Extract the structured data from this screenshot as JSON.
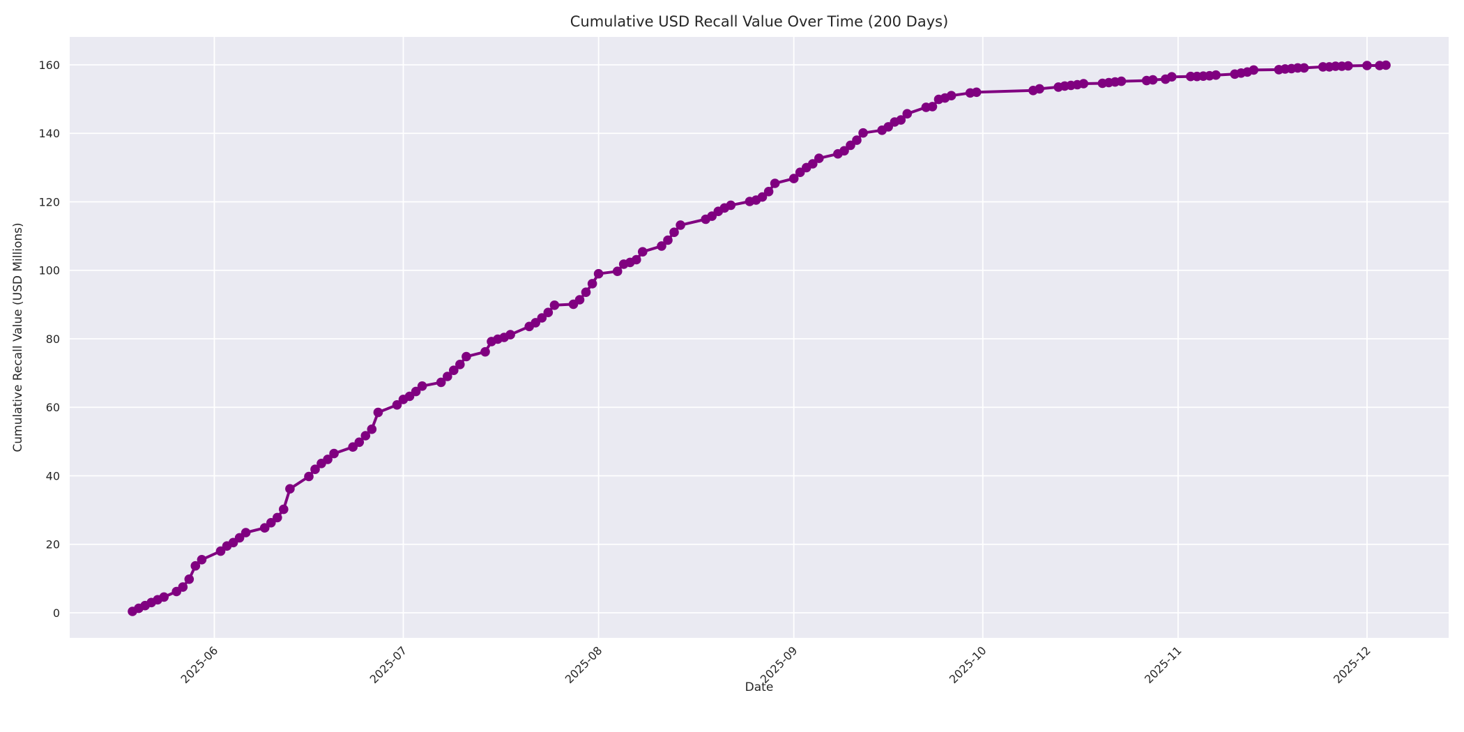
{
  "figure": {
    "background": "#ffffff",
    "plot_background": "#eaeaf2",
    "grid_color": "#ffffff",
    "text_color": "#262626"
  },
  "chart_data": {
    "type": "line",
    "title": "Cumulative USD Recall Value Over Time (200 Days)",
    "xlabel": "Date",
    "ylabel": "Cumulative Recall Value (USD Millions)",
    "grid": true,
    "legend_position": "none",
    "line_color": "#800080",
    "marker": "circle",
    "x_origin": "2025-05-19",
    "x_range_days": [
      -9.96,
      208.96
    ],
    "ylim": [
      -7.33,
      168.14
    ],
    "yticks": [
      0,
      20,
      40,
      60,
      80,
      100,
      120,
      140,
      160
    ],
    "xticks": [
      {
        "date": "2025-06-01",
        "label": "2025-06"
      },
      {
        "date": "2025-07-01",
        "label": "2025-07"
      },
      {
        "date": "2025-08-01",
        "label": "2025-08"
      },
      {
        "date": "2025-09-01",
        "label": "2025-09"
      },
      {
        "date": "2025-10-01",
        "label": "2025-10"
      },
      {
        "date": "2025-11-01",
        "label": "2025-11"
      },
      {
        "date": "2025-12-01",
        "label": "2025-12"
      }
    ],
    "series": [
      {
        "name": "Cumulative Recall Value",
        "color": "#800080",
        "points": [
          [
            "2025-05-19",
            0.4
          ],
          [
            "2025-05-20",
            1.3
          ],
          [
            "2025-05-21",
            2.1
          ],
          [
            "2025-05-22",
            3.0
          ],
          [
            "2025-05-23",
            3.8
          ],
          [
            "2025-05-24",
            4.6
          ],
          [
            "2025-05-26",
            6.2
          ],
          [
            "2025-05-27",
            7.5
          ],
          [
            "2025-05-28",
            9.8
          ],
          [
            "2025-05-29",
            13.7
          ],
          [
            "2025-05-30",
            15.5
          ],
          [
            "2025-06-02",
            18.0
          ],
          [
            "2025-06-03",
            19.5
          ],
          [
            "2025-06-04",
            20.5
          ],
          [
            "2025-06-05",
            21.9
          ],
          [
            "2025-06-06",
            23.4
          ],
          [
            "2025-06-09",
            24.8
          ],
          [
            "2025-06-10",
            26.3
          ],
          [
            "2025-06-11",
            27.8
          ],
          [
            "2025-06-12",
            30.2
          ],
          [
            "2025-06-13",
            36.2
          ],
          [
            "2025-06-16",
            39.8
          ],
          [
            "2025-06-17",
            41.9
          ],
          [
            "2025-06-18",
            43.6
          ],
          [
            "2025-06-19",
            44.8
          ],
          [
            "2025-06-20",
            46.5
          ],
          [
            "2025-06-23",
            48.4
          ],
          [
            "2025-06-24",
            49.8
          ],
          [
            "2025-06-25",
            51.7
          ],
          [
            "2025-06-26",
            53.6
          ],
          [
            "2025-06-27",
            58.5
          ],
          [
            "2025-06-30",
            60.7
          ],
          [
            "2025-07-01",
            62.3
          ],
          [
            "2025-07-02",
            63.2
          ],
          [
            "2025-07-03",
            64.6
          ],
          [
            "2025-07-04",
            66.2
          ],
          [
            "2025-07-07",
            67.3
          ],
          [
            "2025-07-08",
            69.0
          ],
          [
            "2025-07-09",
            70.8
          ],
          [
            "2025-07-10",
            72.5
          ],
          [
            "2025-07-11",
            74.8
          ],
          [
            "2025-07-14",
            76.2
          ],
          [
            "2025-07-15",
            79.2
          ],
          [
            "2025-07-16",
            79.9
          ],
          [
            "2025-07-17",
            80.4
          ],
          [
            "2025-07-18",
            81.2
          ],
          [
            "2025-07-21",
            83.6
          ],
          [
            "2025-07-22",
            84.7
          ],
          [
            "2025-07-23",
            86.1
          ],
          [
            "2025-07-24",
            87.7
          ],
          [
            "2025-07-25",
            89.8
          ],
          [
            "2025-07-28",
            90.1
          ],
          [
            "2025-07-29",
            91.4
          ],
          [
            "2025-07-30",
            93.6
          ],
          [
            "2025-07-31",
            96.1
          ],
          [
            "2025-08-01",
            99.0
          ],
          [
            "2025-08-04",
            99.7
          ],
          [
            "2025-08-05",
            101.8
          ],
          [
            "2025-08-06",
            102.3
          ],
          [
            "2025-08-07",
            103.1
          ],
          [
            "2025-08-08",
            105.4
          ],
          [
            "2025-08-11",
            107.1
          ],
          [
            "2025-08-12",
            108.8
          ],
          [
            "2025-08-13",
            111.1
          ],
          [
            "2025-08-14",
            113.2
          ],
          [
            "2025-08-18",
            114.9
          ],
          [
            "2025-08-19",
            115.8
          ],
          [
            "2025-08-20",
            117.2
          ],
          [
            "2025-08-21",
            118.2
          ],
          [
            "2025-08-22",
            119.0
          ],
          [
            "2025-08-25",
            120.1
          ],
          [
            "2025-08-26",
            120.5
          ],
          [
            "2025-08-27",
            121.4
          ],
          [
            "2025-08-28",
            123.0
          ],
          [
            "2025-08-29",
            125.4
          ],
          [
            "2025-09-01",
            126.8
          ],
          [
            "2025-09-02",
            128.6
          ],
          [
            "2025-09-03",
            130.0
          ],
          [
            "2025-09-04",
            131.1
          ],
          [
            "2025-09-05",
            132.7
          ],
          [
            "2025-09-08",
            134.0
          ],
          [
            "2025-09-09",
            134.9
          ],
          [
            "2025-09-10",
            136.5
          ],
          [
            "2025-09-11",
            138.0
          ],
          [
            "2025-09-12",
            140.1
          ],
          [
            "2025-09-15",
            140.9
          ],
          [
            "2025-09-16",
            141.9
          ],
          [
            "2025-09-17",
            143.3
          ],
          [
            "2025-09-18",
            143.9
          ],
          [
            "2025-09-19",
            145.7
          ],
          [
            "2025-09-22",
            147.6
          ],
          [
            "2025-09-23",
            147.8
          ],
          [
            "2025-09-24",
            149.9
          ],
          [
            "2025-09-25",
            150.3
          ],
          [
            "2025-09-26",
            151.0
          ],
          [
            "2025-09-29",
            151.8
          ],
          [
            "2025-09-30",
            152.0
          ],
          [
            "2025-10-09",
            152.5
          ],
          [
            "2025-10-10",
            153.0
          ],
          [
            "2025-10-13",
            153.5
          ],
          [
            "2025-10-14",
            153.8
          ],
          [
            "2025-10-15",
            154.0
          ],
          [
            "2025-10-16",
            154.2
          ],
          [
            "2025-10-17",
            154.5
          ],
          [
            "2025-10-20",
            154.6
          ],
          [
            "2025-10-21",
            154.8
          ],
          [
            "2025-10-22",
            155.0
          ],
          [
            "2025-10-23",
            155.2
          ],
          [
            "2025-10-27",
            155.4
          ],
          [
            "2025-10-28",
            155.6
          ],
          [
            "2025-10-30",
            155.8
          ],
          [
            "2025-10-31",
            156.5
          ],
          [
            "2025-11-03",
            156.6
          ],
          [
            "2025-11-04",
            156.6
          ],
          [
            "2025-11-05",
            156.7
          ],
          [
            "2025-11-06",
            156.8
          ],
          [
            "2025-11-07",
            157.0
          ],
          [
            "2025-11-10",
            157.3
          ],
          [
            "2025-11-11",
            157.6
          ],
          [
            "2025-11-12",
            157.9
          ],
          [
            "2025-11-13",
            158.5
          ],
          [
            "2025-11-17",
            158.6
          ],
          [
            "2025-11-18",
            158.8
          ],
          [
            "2025-11-19",
            158.9
          ],
          [
            "2025-11-20",
            159.1
          ],
          [
            "2025-11-21",
            159.1
          ],
          [
            "2025-11-24",
            159.4
          ],
          [
            "2025-11-25",
            159.4
          ],
          [
            "2025-11-26",
            159.6
          ],
          [
            "2025-11-27",
            159.6
          ],
          [
            "2025-11-28",
            159.7
          ],
          [
            "2025-12-01",
            159.8
          ],
          [
            "2025-12-03",
            159.8
          ],
          [
            "2025-12-04",
            159.9
          ]
        ]
      }
    ]
  }
}
